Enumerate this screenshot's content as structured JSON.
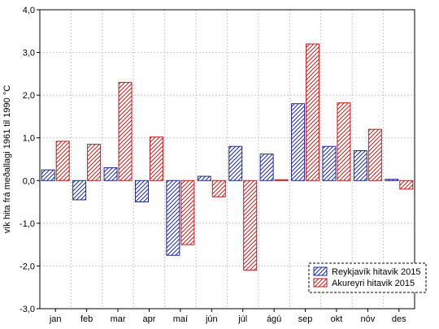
{
  "chart_data": {
    "type": "bar",
    "ylabel": "vík hita frá meðallagi 1961 til 1990 °C",
    "ylim": [
      -3.0,
      4.0
    ],
    "yticks": [
      "-3,0",
      "-2,0",
      "-1,0",
      "0,0",
      "1,0",
      "2,0",
      "3,0",
      "4,0"
    ],
    "ytick_values": [
      -3,
      -2,
      -1,
      0,
      1,
      2,
      3,
      4
    ],
    "grid": true,
    "legend_position": "bottom-right",
    "categories": [
      "jan",
      "feb",
      "mar",
      "apr",
      "maí",
      "jún",
      "júl",
      "ágú",
      "sep",
      "okt",
      "nóv",
      "des"
    ],
    "series": [
      {
        "name": "Reykjavík hitavik 2015",
        "color": "#1f2a8c",
        "values": [
          0.25,
          -0.45,
          0.3,
          -0.5,
          -1.75,
          0.1,
          0.8,
          0.62,
          1.8,
          0.8,
          0.7,
          0.03
        ]
      },
      {
        "name": "Akureyri hitavik 2015",
        "color": "#b22222",
        "values": [
          0.92,
          0.85,
          2.3,
          1.02,
          -1.5,
          -0.38,
          -2.1,
          0.02,
          3.2,
          1.82,
          1.2,
          -0.2
        ]
      }
    ]
  }
}
